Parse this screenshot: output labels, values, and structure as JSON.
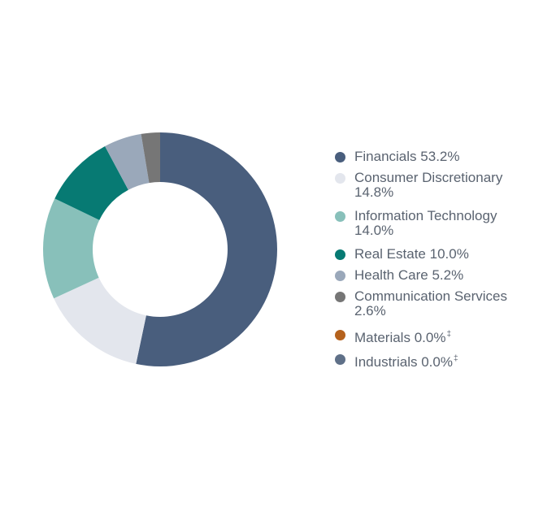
{
  "chart_data": {
    "type": "pie",
    "donut": true,
    "legend_position": "right",
    "slices": [
      {
        "label": "Financials",
        "value": 53.2,
        "value_text": "53.2%",
        "dagger": "",
        "color": "#495e7d",
        "wrap": false
      },
      {
        "label": "Consumer Discretionary",
        "value": 14.8,
        "value_text": "14.8%",
        "dagger": "",
        "color": "#e3e6ed",
        "wrap": true
      },
      {
        "label": "Information Technology",
        "value": 14.0,
        "value_text": "14.0%",
        "dagger": "",
        "color": "#88c0ba",
        "wrap": true
      },
      {
        "label": "Real Estate",
        "value": 10.0,
        "value_text": "10.0%",
        "dagger": "",
        "color": "#077a73",
        "wrap": false
      },
      {
        "label": "Health Care",
        "value": 5.2,
        "value_text": "5.2%",
        "dagger": "",
        "color": "#9aa8ba",
        "wrap": false
      },
      {
        "label": "Communication Services",
        "value": 2.6,
        "value_text": "2.6%",
        "dagger": "",
        "color": "#767676",
        "wrap": true
      },
      {
        "label": "Materials",
        "value": 0.0,
        "value_text": "0.0%",
        "dagger": "‡",
        "color": "#b5621d",
        "wrap": false
      },
      {
        "label": "Industrials",
        "value": 0.0,
        "value_text": "0.0%",
        "dagger": "‡",
        "color": "#5f7088",
        "wrap": false
      }
    ]
  }
}
